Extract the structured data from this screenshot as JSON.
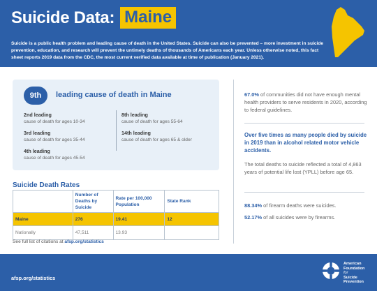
{
  "header": {
    "title": "Suicide Data:",
    "state": "Maine",
    "intro": "Suicide is a public health problem and leading cause of death in the United States. Suicide can also be prevented – more investment in suicide prevention, education, and research will prevent the untimely deaths of thousands of Americans each year. Unless otherwise noted, this fact sheet reports 2019 data from the CDC, the most current verified data available at time of publication (January 2021).",
    "accent_color": "#2c5fa8",
    "highlight_color": "#f5c400"
  },
  "rank_card": {
    "badge": "9th",
    "label": "leading cause of death in Maine",
    "items": [
      {
        "title": "2nd leading",
        "sub": "cause of death for ages 10-34"
      },
      {
        "title": "3rd leading",
        "sub": "cause of death for ages 35-44"
      },
      {
        "title": "4th leading",
        "sub": "cause of death for ages 45-54"
      },
      {
        "title": "8th leading",
        "sub": "cause of death for ages 55-64"
      },
      {
        "title": "14th leading",
        "sub": "cause of death for ages 65 & older"
      }
    ]
  },
  "rates": {
    "title": "Suicide Death Rates",
    "columns": [
      "",
      "Number of Deaths by Suicide",
      "Rate per 100,000 Population",
      "State Rank"
    ],
    "rows": [
      {
        "name": "Maine",
        "deaths": "276",
        "rate": "19.41",
        "rank": "12"
      },
      {
        "name": "Nationally",
        "deaths": "47,511",
        "rate": "13.93",
        "rank": ""
      }
    ]
  },
  "citation": {
    "prefix": "See full list of citations at ",
    "link": "afsp.org/statistics"
  },
  "stats": {
    "s1_value": "67.0%",
    "s1_text": " of communities did not have enough mental health providers to serve residents in 2020, according to federal guidelines.",
    "s2": "Over five times as many people died by suicide in 2019 than in alcohol related motor vehicle accidents.",
    "s3": "The total deaths to suicide reflected a total of 4,863 years of potential life lost (YPLL) before age 65.",
    "s4_value": "88.34%",
    "s4_text": " of firearm deaths were suicides.",
    "s5_value": "52.17%",
    "s5_text": " of all suicides were by firearms."
  },
  "footer": {
    "url": "afsp.org/statistics",
    "org_line1": "American",
    "org_line2": "Foundation",
    "org_line3": "for",
    "org_line4": "Suicide",
    "org_line5": "Prevention",
    "logo_icon": "lifebuoy-icon"
  }
}
